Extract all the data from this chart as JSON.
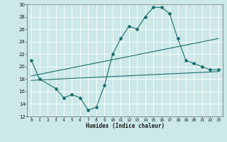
{
  "xlabel": "Humidex (Indice chaleur)",
  "bg_color": "#cce8e8",
  "grid_color": "#ffffff",
  "line_color": "#1a6e6e",
  "xlim": [
    -0.5,
    23.5
  ],
  "ylim": [
    12,
    30
  ],
  "xticks": [
    0,
    1,
    2,
    3,
    4,
    5,
    6,
    7,
    8,
    9,
    10,
    11,
    12,
    13,
    14,
    15,
    16,
    17,
    18,
    19,
    20,
    21,
    22,
    23
  ],
  "yticks": [
    12,
    14,
    16,
    18,
    20,
    22,
    24,
    26,
    28,
    30
  ],
  "curve_x": [
    0,
    1,
    3,
    4,
    5,
    6,
    7,
    8,
    9,
    10,
    11,
    12,
    13,
    14,
    15,
    16,
    17,
    18,
    19,
    20,
    21,
    22,
    23
  ],
  "curve_y": [
    21,
    18,
    16.5,
    15,
    15.5,
    15,
    13,
    13.5,
    17,
    22,
    24.5,
    26.5,
    26,
    28,
    29.5,
    29.5,
    28.5,
    24.5,
    21,
    20.5,
    20,
    19.5,
    19.5
  ],
  "line1_x": [
    0,
    23
  ],
  "line1_y": [
    17.8,
    19.2
  ],
  "line2_x": [
    0,
    23
  ],
  "line2_y": [
    18.5,
    24.5
  ]
}
